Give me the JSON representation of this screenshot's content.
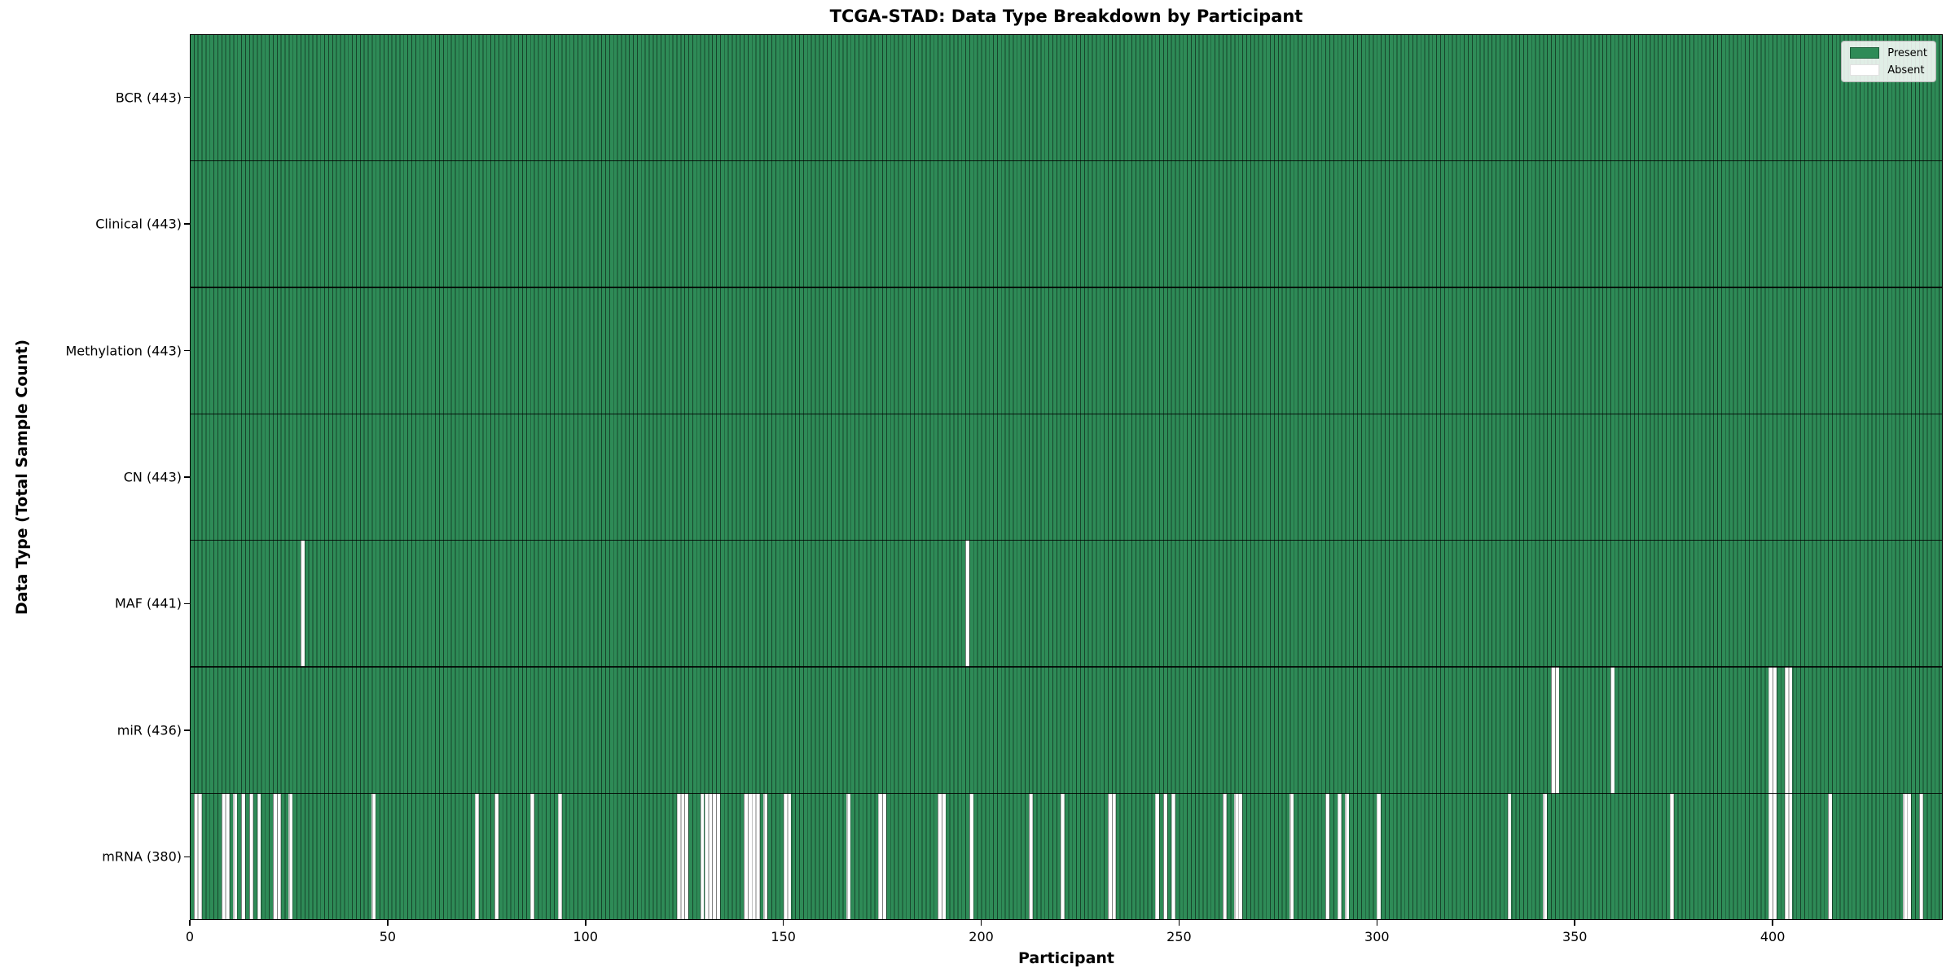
{
  "title": "TCGA-STAD: Data Type Breakdown by Participant",
  "colors": {
    "present": "#2e8b57",
    "absent": "#ffffff",
    "bar_edge": "rgba(0,0,0,0.5)",
    "row_boundary": "rgba(0,0,0,0.85)",
    "spine": "#000000"
  },
  "chart_data": {
    "type": "heatmap",
    "title": "TCGA-STAD: Data Type Breakdown by Participant",
    "xlabel": "Participant",
    "ylabel": "Data Type (Total Sample Count)",
    "n_participants": 443,
    "xlim": [
      0,
      443
    ],
    "x_ticks": [
      0,
      50,
      100,
      150,
      200,
      250,
      300,
      350,
      400
    ],
    "grid": false,
    "legend_position": "upper right",
    "legend": [
      {
        "label": "Present",
        "color": "#2e8b57"
      },
      {
        "label": "Absent",
        "color": "#ffffff"
      }
    ],
    "rows": [
      {
        "name": "BCR",
        "label": "BCR (443)",
        "present_count": 443,
        "absent_count": 0,
        "absent_participants": []
      },
      {
        "name": "Clinical",
        "label": "Clinical (443)",
        "present_count": 443,
        "absent_count": 0,
        "absent_participants": []
      },
      {
        "name": "Methylation",
        "label": "Methylation (443)",
        "present_count": 443,
        "absent_count": 0,
        "absent_participants": []
      },
      {
        "name": "CN",
        "label": "CN (443)",
        "present_count": 443,
        "absent_count": 0,
        "absent_participants": []
      },
      {
        "name": "MAF",
        "label": "MAF (441)",
        "present_count": 441,
        "absent_count": 2,
        "absent_participants": [
          28,
          196
        ]
      },
      {
        "name": "miR",
        "label": "miR (436)",
        "present_count": 436,
        "absent_count": 7,
        "absent_participants": [
          344,
          345,
          359,
          399,
          400,
          403,
          404
        ]
      },
      {
        "name": "mRNA",
        "label": "mRNA (380)",
        "present_count": 380,
        "absent_count": 63,
        "absent_participants": [
          1,
          2,
          8,
          9,
          11,
          13,
          15,
          17,
          21,
          22,
          25,
          46,
          72,
          77,
          86,
          93,
          123,
          124,
          125,
          129,
          130,
          131,
          132,
          133,
          140,
          141,
          142,
          143,
          145,
          150,
          151,
          166,
          174,
          175,
          189,
          190,
          197,
          212,
          220,
          232,
          233,
          244,
          246,
          248,
          261,
          264,
          265,
          278,
          287,
          290,
          292,
          300,
          333,
          342,
          374,
          399,
          400,
          403,
          404,
          414,
          433,
          434,
          437
        ]
      }
    ]
  }
}
